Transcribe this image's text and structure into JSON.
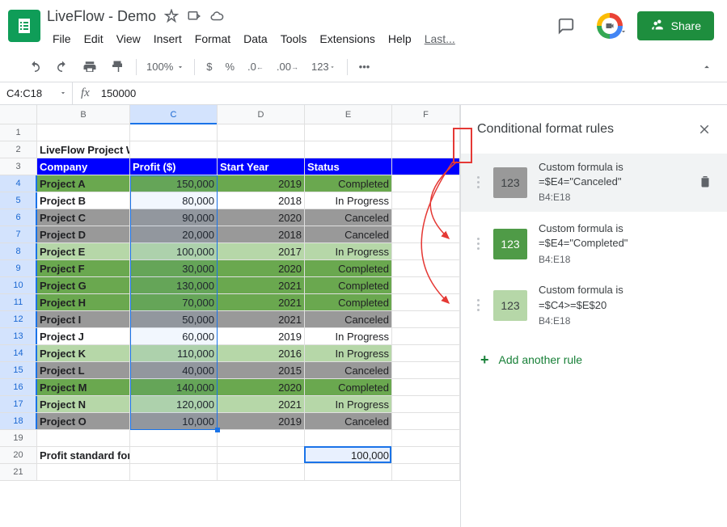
{
  "doc": {
    "title": "LiveFlow - Demo"
  },
  "menus": [
    "File",
    "Edit",
    "View",
    "Insert",
    "Format",
    "Data",
    "Tools",
    "Extensions",
    "Help"
  ],
  "menu_last": "Last...",
  "share_label": "Share",
  "toolbar": {
    "zoom": "100%",
    "fmt123": "123"
  },
  "name_box": "C4:C18",
  "formula_value": "150000",
  "col_letters": [
    "B",
    "C",
    "D",
    "E",
    "F"
  ],
  "rows_count": 21,
  "selected_col_index": 1,
  "selected_row_start": 4,
  "selected_row_end": 18,
  "table_header_row": 3,
  "table_title_row": 2,
  "table_title": "LiveFlow Project Watch List",
  "headers": [
    "Company",
    "Profit ($)",
    "Start Year",
    "Status"
  ],
  "colors": {
    "header_bg": "#0000ff",
    "green_dark": "#4f9b47",
    "green_mid": "#6aa84f",
    "green_light": "#b6d7a8",
    "gray": "#999999",
    "gray_light": "#b7b7b7",
    "white": "#ffffff",
    "profit_box_border": "#1a73e8",
    "profit_box_bg": "#e8f0fe"
  },
  "projects": [
    {
      "company": "Project A",
      "profit": "150,000",
      "year": "2019",
      "status": "Completed",
      "bg": "green_mid"
    },
    {
      "company": "Project B",
      "profit": "80,000",
      "year": "2018",
      "status": "In Progress",
      "bg": "white"
    },
    {
      "company": "Project C",
      "profit": "90,000",
      "year": "2020",
      "status": "Canceled",
      "bg": "gray"
    },
    {
      "company": "Project D",
      "profit": "20,000",
      "year": "2018",
      "status": "Canceled",
      "bg": "gray"
    },
    {
      "company": "Project E",
      "profit": "100,000",
      "year": "2017",
      "status": "In Progress",
      "bg": "green_light"
    },
    {
      "company": "Project F",
      "profit": "30,000",
      "year": "2020",
      "status": "Completed",
      "bg": "green_mid"
    },
    {
      "company": "Project G",
      "profit": "130,000",
      "year": "2021",
      "status": "Completed",
      "bg": "green_mid"
    },
    {
      "company": "Project H",
      "profit": "70,000",
      "year": "2021",
      "status": "Completed",
      "bg": "green_mid"
    },
    {
      "company": "Project I",
      "profit": "50,000",
      "year": "2021",
      "status": "Canceled",
      "bg": "gray"
    },
    {
      "company": "Project J",
      "profit": "60,000",
      "year": "2019",
      "status": "In Progress",
      "bg": "white"
    },
    {
      "company": "Project K",
      "profit": "110,000",
      "year": "2016",
      "status": "In Progress",
      "bg": "green_light"
    },
    {
      "company": "Project L",
      "profit": "40,000",
      "year": "2015",
      "status": "Canceled",
      "bg": "gray"
    },
    {
      "company": "Project M",
      "profit": "140,000",
      "year": "2020",
      "status": "Completed",
      "bg": "green_mid"
    },
    {
      "company": "Project N",
      "profit": "120,000",
      "year": "2021",
      "status": "In Progress",
      "bg": "green_light"
    },
    {
      "company": "Project O",
      "profit": "10,000",
      "year": "2019",
      "status": "Canceled",
      "bg": "gray"
    }
  ],
  "footer": {
    "row": 20,
    "label": "Profit standard for a watch list ($)",
    "value": "100,000"
  },
  "sidebar": {
    "title": "Conditional format rules",
    "add_label": "Add another rule",
    "rules": [
      {
        "swatch": "#999999",
        "swatch_text_color": "#3c4043",
        "title": "Custom formula is",
        "formula": "=$E4=\"Canceled\"",
        "range": "B4:E18",
        "active": true
      },
      {
        "swatch": "#4f9b47",
        "swatch_text_color": "#ffffff",
        "title": "Custom formula is",
        "formula": "=$E4=\"Completed\"",
        "range": "B4:E18",
        "active": false
      },
      {
        "swatch": "#b6d7a8",
        "swatch_text_color": "#3c4043",
        "title": "Custom formula is",
        "formula": "=$C4>=$E$20",
        "range": "B4:E18",
        "active": false
      }
    ]
  }
}
